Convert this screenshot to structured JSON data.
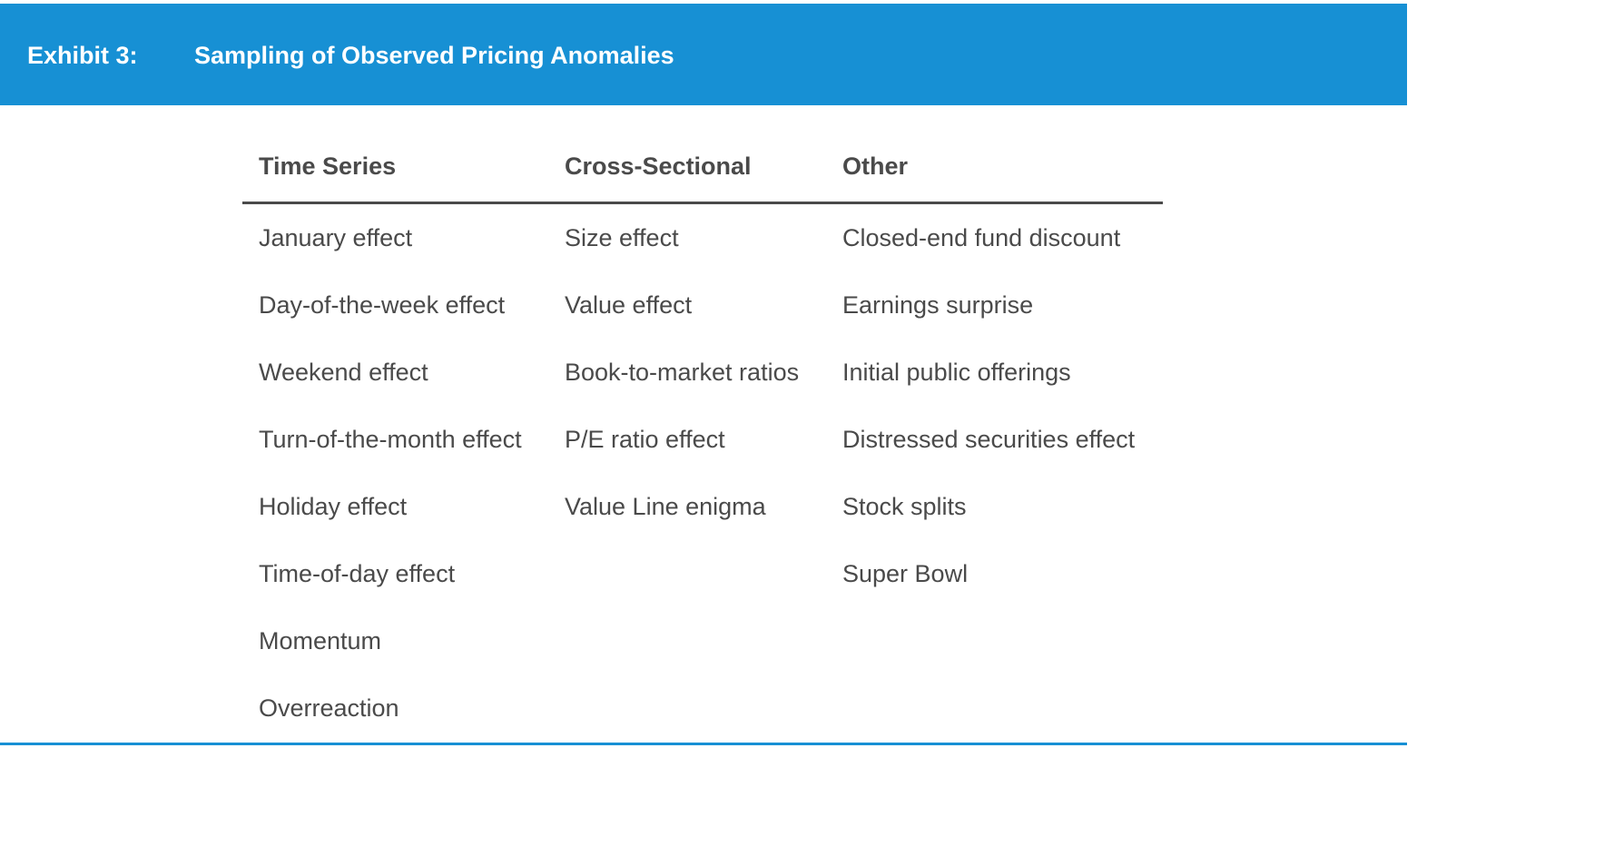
{
  "exhibit": {
    "label": "Exhibit 3:",
    "title": "Sampling of Observed Pricing Anomalies"
  },
  "table": {
    "columns": [
      {
        "header": "Time Series",
        "items": [
          "January effect",
          "Day-of-the-week effect",
          "Weekend effect",
          "Turn-of-the-month effect",
          "Holiday effect",
          "Time-of-day effect",
          "Momentum",
          "Overreaction"
        ]
      },
      {
        "header": "Cross-Sectional",
        "items": [
          "Size effect",
          "Value effect",
          "Book-to-market ratios",
          "P/E ratio effect",
          "Value Line enigma"
        ]
      },
      {
        "header": "Other",
        "items": [
          "Closed-end fund discount",
          "Earnings surprise",
          "Initial public offerings",
          "Distressed securities effect",
          "Stock splits",
          "Super Bowl"
        ]
      }
    ]
  },
  "colors": {
    "accent": "#1790d4",
    "text": "#4a4a4a",
    "header_text": "#ffffff"
  }
}
